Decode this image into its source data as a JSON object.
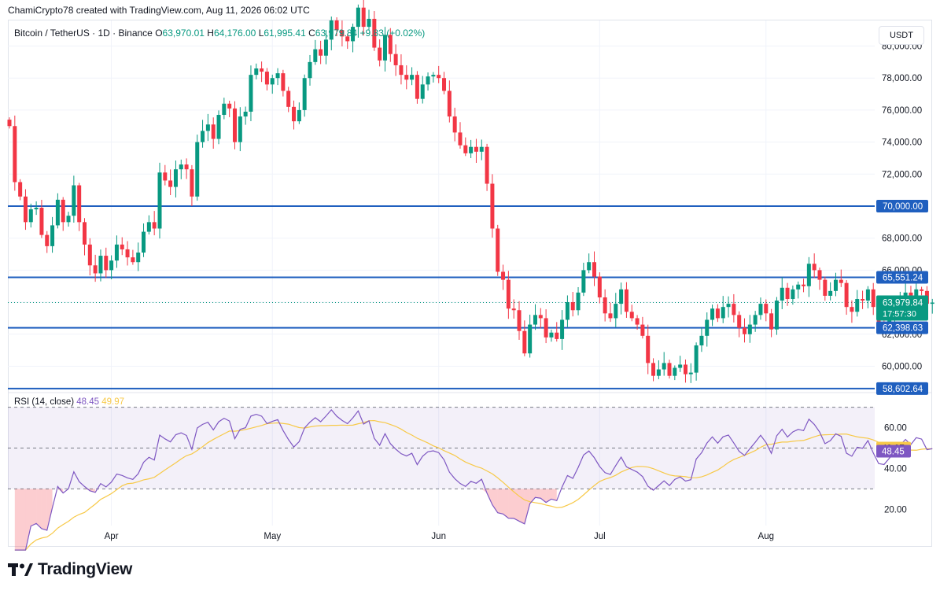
{
  "header": {
    "attribution": "ChamiCrypto78 created with TradingView.com, Aug 11, 2026 06:02 UTC"
  },
  "legend": {
    "symbol": "Bitcoin / TetherUS · 1D · Binance",
    "open_label": "O",
    "open": "63,970.01",
    "high_label": "H",
    "high": "64,176.00",
    "low_label": "L",
    "low": "61,995.41",
    "close_label": "C",
    "close": "63,979.84",
    "change": "+9.83 (+0.02%)"
  },
  "currency": "USDT",
  "brand": "TradingView",
  "chart_data": [
    {
      "type": "candlestick",
      "title": "Bitcoin / TetherUS · 1D · Binance",
      "x_ticks": [
        "Apr",
        "May",
        "Jun",
        "Jul",
        "Aug"
      ],
      "y_ticks": [
        "60,000.00",
        "62,000.00",
        "64,000.00",
        "66,000.00",
        "68,000.00",
        "70,000.00",
        "72,000.00",
        "74,000.00",
        "76,000.00",
        "78,000.00",
        "80,000.00"
      ],
      "ylim": [
        58500,
        81500
      ],
      "x_start": "2026-03-13",
      "x_end": "2026-08-11",
      "colors": {
        "up": "#089981",
        "down": "#f23645",
        "level": "#1f5fbf"
      },
      "close": [
        75000,
        71500,
        70600,
        69000,
        69800,
        69900,
        68200,
        67500,
        68800,
        70400,
        69000,
        69400,
        71300,
        69000,
        67600,
        66300,
        65800,
        66900,
        66000,
        66600,
        67600,
        67300,
        66800,
        66500,
        67100,
        68400,
        69000,
        68600,
        72100,
        71600,
        71200,
        72300,
        72600,
        72300,
        70600,
        74000,
        74700,
        75100,
        74200,
        75700,
        76400,
        76100,
        74000,
        75600,
        75900,
        78200,
        78600,
        78400,
        77600,
        78000,
        78300,
        77200,
        76200,
        75300,
        76000,
        78000,
        79000,
        79800,
        79400,
        80400,
        81600,
        81000,
        80600,
        80300,
        81200,
        82400,
        81200,
        81700,
        79900,
        79100,
        80700,
        79500,
        78800,
        78200,
        77900,
        78200,
        76700,
        77600,
        78100,
        78200,
        78000,
        77200,
        75600,
        74600,
        73800,
        73300,
        73700,
        73400,
        73700,
        71400,
        68600,
        65900,
        65400,
        63600,
        63500,
        62200,
        60800,
        62600,
        63200,
        63000,
        61800,
        62100,
        61700,
        62900,
        64000,
        63500,
        64600,
        66000,
        66500,
        65600,
        64300,
        63300,
        63000,
        63900,
        64800,
        63400,
        63000,
        62600,
        61900,
        60200,
        59400,
        59800,
        60200,
        59400,
        59900,
        60100,
        59500,
        59600,
        61300,
        61900,
        62900,
        63600,
        63000,
        63700,
        63900,
        63200,
        62400,
        62000,
        62600,
        63200,
        63900,
        63300,
        62300,
        64100,
        64900,
        64200,
        64800,
        65100,
        65000,
        66400,
        66000,
        65400,
        64400,
        64700,
        65400,
        65200,
        63700,
        63400,
        64200,
        64100,
        64800,
        63700,
        62600,
        62500,
        63000,
        63500,
        64100,
        64600,
        64200,
        64800,
        64700,
        63900,
        63980
      ],
      "level_lines": [
        {
          "price": 70000,
          "label": "70,000.00"
        },
        {
          "price": 65551.24,
          "label": "65,551.24"
        },
        {
          "price": 62398.63,
          "label": "62,398.63"
        },
        {
          "price": 58602.64,
          "label": "58,602.64"
        }
      ],
      "last_price": {
        "value": 63979.84,
        "label": "63,979.84",
        "countdown": "17:57:30"
      }
    },
    {
      "type": "line",
      "title": "RSI (14, close)",
      "series": [
        {
          "name": "RSI",
          "color": "#7e57c2",
          "last": "48.45"
        },
        {
          "name": "RSI-based MA",
          "color": "#f7c948",
          "last": "49.97"
        }
      ],
      "y_ticks": [
        "20.00",
        "40.00",
        "60.00"
      ],
      "ylim": [
        12,
        76
      ],
      "bands": [
        70,
        50,
        30
      ]
    }
  ]
}
